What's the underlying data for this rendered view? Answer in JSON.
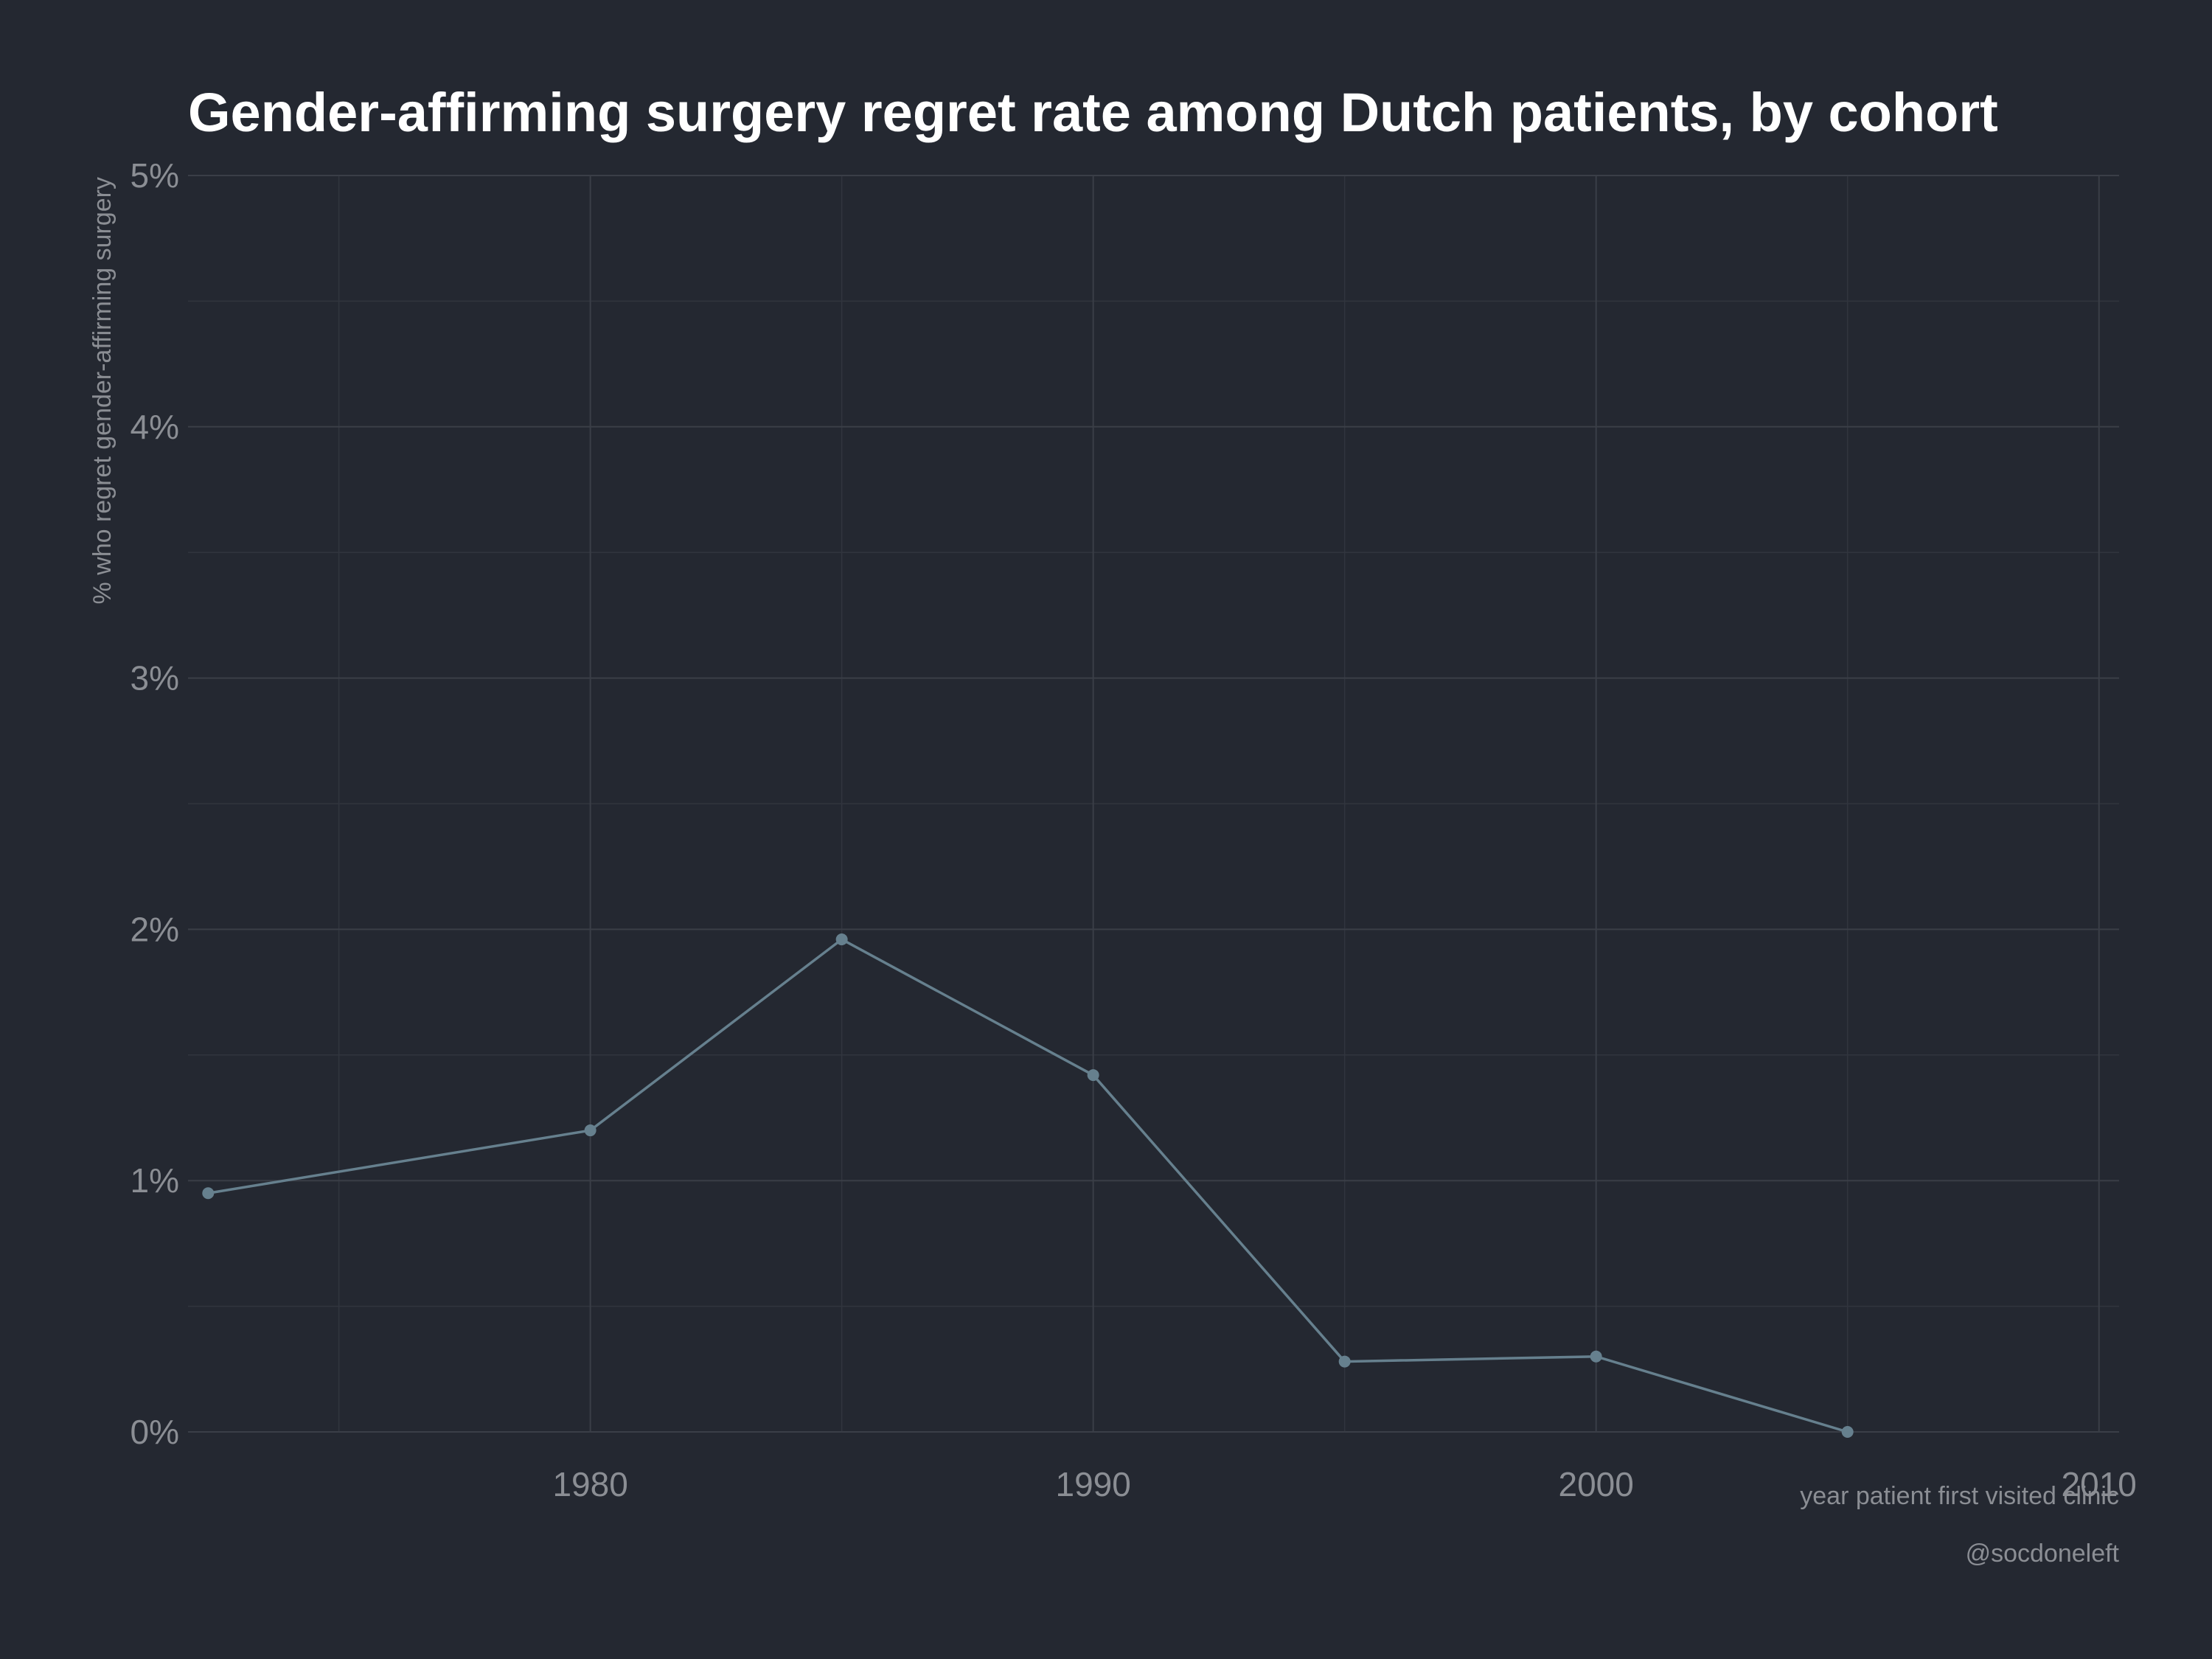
{
  "chart_data": {
    "type": "line",
    "title": "Gender-affirming surgery regret rate among Dutch patients, by cohort",
    "xlabel": "year patient first visited clinic",
    "ylabel": "% who regret gender-affirming surgery",
    "caption": "@socdoneleft",
    "x_ticks": [
      1980,
      1990,
      2000,
      2010
    ],
    "x_tick_labels": [
      "1980",
      "1990",
      "2000",
      "2010"
    ],
    "y_ticks": [
      0,
      1,
      2,
      3,
      4,
      5
    ],
    "y_tick_labels": [
      "0%",
      "1%",
      "2%",
      "3%",
      "4%",
      "5%"
    ],
    "xlim": [
      1972,
      2010.4
    ],
    "ylim": [
      0,
      5
    ],
    "grid": true,
    "series": [
      {
        "x": [
          1972.4,
          1980,
          1985,
          1990,
          1995,
          2000,
          2005
        ],
        "values": [
          0.95,
          1.2,
          1.96,
          1.42,
          0.28,
          0.3,
          0.0
        ]
      }
    ],
    "colors": {
      "background": "#242831",
      "line": "#66808e",
      "grid": "#3a3e47",
      "text": "#8b8e94",
      "title": "#ffffff"
    }
  }
}
